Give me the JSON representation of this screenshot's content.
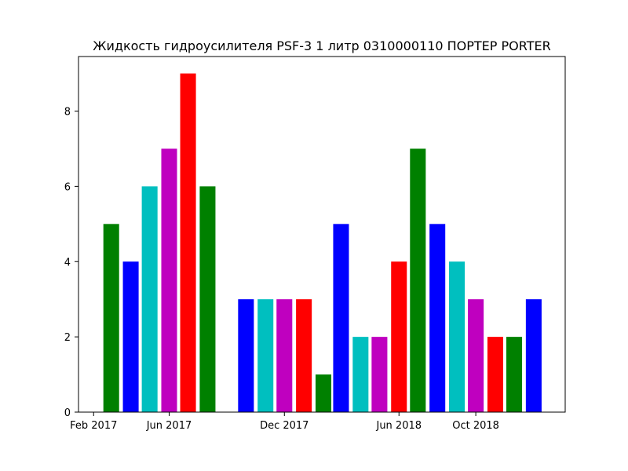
{
  "chart_data": {
    "type": "bar",
    "title": "Жидкость гидроусилителя PSF-3 1 литр 0310000110 ПОРТЕР PORTER",
    "xlabel": "",
    "ylabel": "",
    "x_axis_type": "date",
    "xlim": [
      "2017-01-08",
      "2019-02-20"
    ],
    "ylim": [
      0,
      9.45
    ],
    "x_ticks": [
      {
        "date": "2017-02-01",
        "label": "Feb 2017"
      },
      {
        "date": "2017-06-01",
        "label": "Jun 2017"
      },
      {
        "date": "2017-12-01",
        "label": "Dec 2017"
      },
      {
        "date": "2018-06-01",
        "label": "Jun 2018"
      },
      {
        "date": "2018-10-01",
        "label": "Oct 2018"
      }
    ],
    "y_ticks": [
      0,
      2,
      4,
      6,
      8
    ],
    "grid": false,
    "legend": false,
    "bar_color_cycle": [
      "#008000",
      "#0000ff",
      "#00bfbf",
      "#bf00bf",
      "#ff0000"
    ],
    "bars": [
      {
        "x": "2017-03-01",
        "value": 5
      },
      {
        "x": "2017-04-01",
        "value": 4
      },
      {
        "x": "2017-05-01",
        "value": 6
      },
      {
        "x": "2017-06-01",
        "value": 7
      },
      {
        "x": "2017-07-01",
        "value": 9
      },
      {
        "x": "2017-08-01",
        "value": 6
      },
      {
        "x": "2017-10-01",
        "value": 3
      },
      {
        "x": "2017-11-01",
        "value": 3
      },
      {
        "x": "2017-12-01",
        "value": 3
      },
      {
        "x": "2018-01-01",
        "value": 3
      },
      {
        "x": "2018-02-01",
        "value": 1
      },
      {
        "x": "2018-03-01",
        "value": 5
      },
      {
        "x": "2018-04-01",
        "value": 2
      },
      {
        "x": "2018-05-01",
        "value": 2
      },
      {
        "x": "2018-06-01",
        "value": 4
      },
      {
        "x": "2018-07-01",
        "value": 7
      },
      {
        "x": "2018-08-01",
        "value": 5
      },
      {
        "x": "2018-09-01",
        "value": 4
      },
      {
        "x": "2018-10-01",
        "value": 3
      },
      {
        "x": "2018-11-01",
        "value": 2
      },
      {
        "x": "2018-12-01",
        "value": 2
      },
      {
        "x": "2019-01-01",
        "value": 3
      }
    ]
  }
}
